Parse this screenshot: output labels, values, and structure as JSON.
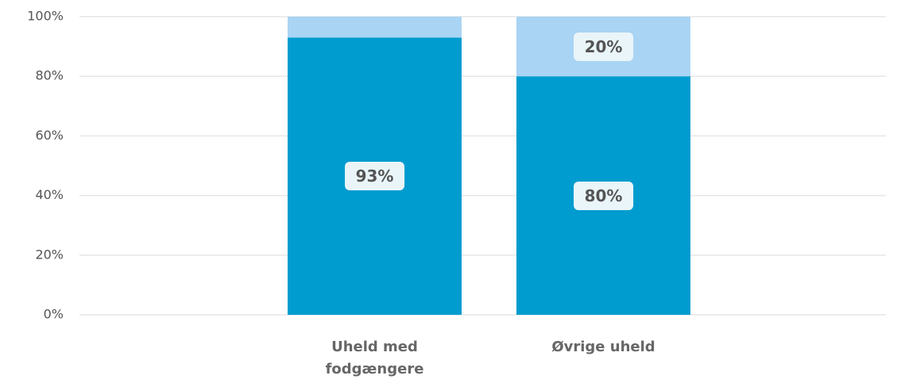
{
  "chart_data": {
    "type": "stacked_bar",
    "categories": [
      "Uheld med fodgængere",
      "Øvrige uheld"
    ],
    "series": [
      {
        "color": "#009ccf",
        "values": [
          93,
          80
        ],
        "value_labels": [
          "93%",
          "80%"
        ]
      },
      {
        "color": "#a9d4f3",
        "values": [
          7,
          20
        ],
        "value_labels": [
          null,
          "20%"
        ]
      }
    ],
    "ylim": [
      0,
      100
    ],
    "yticks": [
      {
        "value": 0,
        "label": "0%"
      },
      {
        "value": 20,
        "label": "20%"
      },
      {
        "value": 40,
        "label": "40%"
      },
      {
        "value": 60,
        "label": "60%"
      },
      {
        "value": 80,
        "label": "80%"
      },
      {
        "value": 100,
        "label": "100%"
      }
    ],
    "grid": true
  }
}
